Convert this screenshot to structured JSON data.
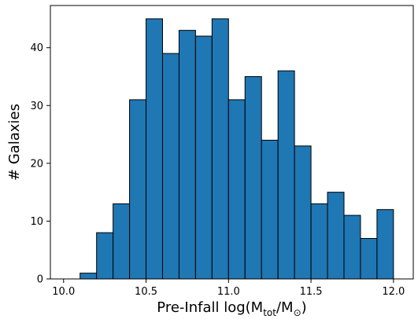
{
  "chart_data": {
    "type": "bar",
    "bar_color": "#1f77b4",
    "edge_color": "#000000",
    "bins": [
      {
        "x0": 10.0,
        "x1": 10.1,
        "count": 0
      },
      {
        "x0": 10.1,
        "x1": 10.2,
        "count": 1
      },
      {
        "x0": 10.2,
        "x1": 10.3,
        "count": 8
      },
      {
        "x0": 10.3,
        "x1": 10.4,
        "count": 13
      },
      {
        "x0": 10.4,
        "x1": 10.5,
        "count": 31
      },
      {
        "x0": 10.5,
        "x1": 10.6,
        "count": 45
      },
      {
        "x0": 10.6,
        "x1": 10.7,
        "count": 39
      },
      {
        "x0": 10.7,
        "x1": 10.8,
        "count": 43
      },
      {
        "x0": 10.8,
        "x1": 10.9,
        "count": 42
      },
      {
        "x0": 10.9,
        "x1": 11.0,
        "count": 45
      },
      {
        "x0": 11.0,
        "x1": 11.1,
        "count": 31
      },
      {
        "x0": 11.1,
        "x1": 11.2,
        "count": 35
      },
      {
        "x0": 11.2,
        "x1": 11.3,
        "count": 24
      },
      {
        "x0": 11.3,
        "x1": 11.4,
        "count": 36
      },
      {
        "x0": 11.4,
        "x1": 11.5,
        "count": 23
      },
      {
        "x0": 11.5,
        "x1": 11.6,
        "count": 13
      },
      {
        "x0": 11.6,
        "x1": 11.7,
        "count": 15
      },
      {
        "x0": 11.7,
        "x1": 11.8,
        "count": 11
      },
      {
        "x0": 11.8,
        "x1": 11.9,
        "count": 7
      },
      {
        "x0": 11.9,
        "x1": 12.0,
        "count": 12
      }
    ],
    "xlim": [
      9.92,
      12.12
    ],
    "ylim": [
      0,
      47.3
    ],
    "xticks": [
      10.0,
      10.5,
      11.0,
      11.5,
      12.0
    ],
    "xtick_labels": [
      "10.0",
      "10.5",
      "11.0",
      "11.5",
      "12.0"
    ],
    "yticks": [
      0,
      10,
      20,
      30,
      40
    ],
    "ytick_labels": [
      "0",
      "10",
      "20",
      "30",
      "40"
    ],
    "xlabel": "Pre-Infall log(M",
    "xlabel_sub1": "tot",
    "xlabel_mid": "/M",
    "xlabel_sub2": "⊙",
    "xlabel_end": ")",
    "ylabel": "# Galaxies",
    "grid": false
  }
}
